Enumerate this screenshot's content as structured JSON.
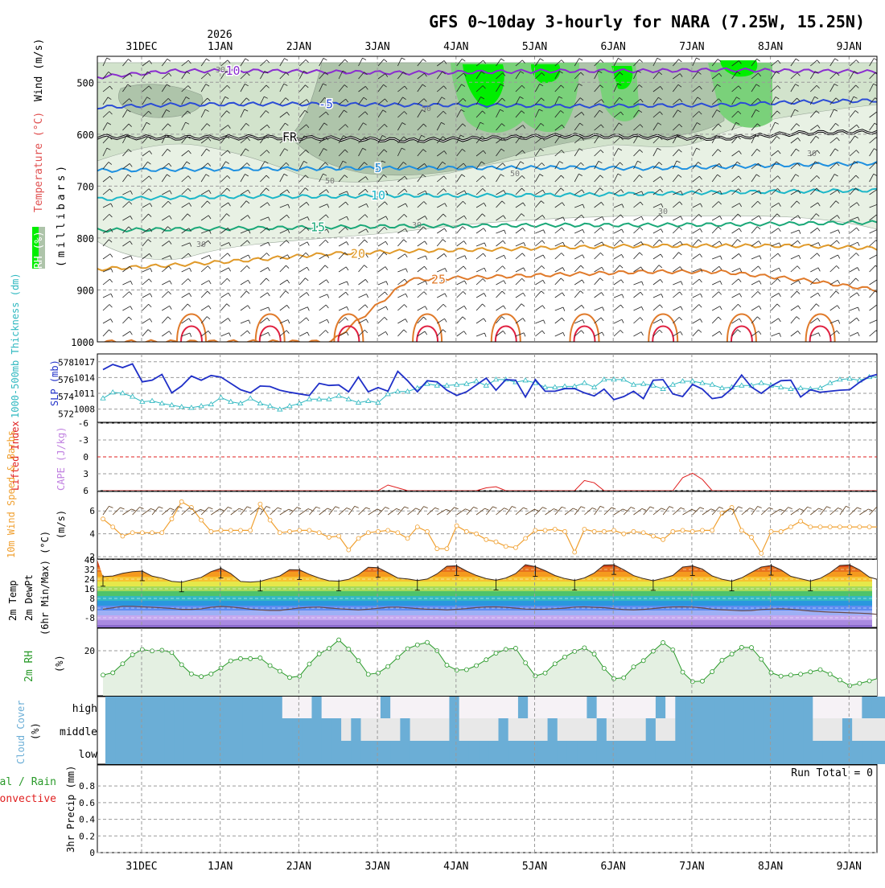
{
  "page": {
    "title": "GFS 0~10day 3-hourly for NARA (7.25W, 15.25N)",
    "year_label": "2026",
    "dates": [
      "31DEC",
      "1JAN",
      "2JAN",
      "3JAN",
      "4JAN",
      "5JAN",
      "6JAN",
      "7JAN",
      "8JAN",
      "9JAN"
    ]
  },
  "colors": {
    "rh_light": "#e8f1e4",
    "rh_mid": "#d2e3cc",
    "rh_dark": "#aec4aa",
    "rh_green": "#7ad17a",
    "rh_bright": "#00ee00",
    "temp_neg10": "#8a2ecf",
    "temp_neg5": "#2b4cd6",
    "temp_fr": "#000000",
    "temp_5": "#1e90e0",
    "temp_10": "#1cb7c8",
    "temp_15": "#1aa878",
    "temp_20": "#e09a2a",
    "temp_25": "#e07a2a",
    "temp_hot": "#e02040",
    "slp": "#1f2fc8",
    "thickness": "#2fb8c0",
    "wind10": "#f0a030",
    "rh2m": "#2a9a2a",
    "cloud": "#6baed6",
    "precip_total": "#2a9a2a",
    "precip_conv": "#e02020"
  },
  "chart_data": [
    {
      "type": "line",
      "panel": "upper-air",
      "ylabel_parts": [
        "RH (%)",
        "Temperature (°C)",
        "Wind (m/s)"
      ],
      "ylabel2": "(millibars)",
      "ylim": [
        1000,
        450
      ],
      "yticks": [
        500,
        600,
        700,
        800,
        900,
        1000
      ],
      "x_days": [
        0,
        10
      ],
      "rh_contour_labels": [
        "30",
        "50"
      ],
      "isotherms": [
        {
          "label": "-10",
          "values": [
            490,
            478,
            478,
            480,
            482,
            480,
            478,
            478,
            476,
            478,
            480
          ]
        },
        {
          "label": "-5",
          "values": [
            548,
            543,
            542,
            542,
            544,
            544,
            546,
            545,
            544,
            538,
            535
          ]
        },
        {
          "label": "FR",
          "values": [
            605,
            607,
            606,
            608,
            612,
            608,
            603,
            605,
            608,
            598,
            595
          ]
        },
        {
          "label": "5",
          "values": [
            670,
            668,
            667,
            666,
            665,
            665,
            664,
            666,
            663,
            659,
            656
          ]
        },
        {
          "label": "10",
          "values": [
            725,
            722,
            720,
            720,
            718,
            718,
            717,
            715,
            712,
            710,
            708
          ]
        },
        {
          "label": "15",
          "values": [
            785,
            783,
            781,
            779,
            777,
            776,
            775,
            775,
            774,
            772,
            770
          ]
        },
        {
          "label": "20",
          "values": [
            860,
            852,
            842,
            830,
            825,
            822,
            818,
            815,
            815,
            815,
            820
          ]
        },
        {
          "label": "25",
          "values": [
            1000,
            1000,
            1000,
            1000,
            880,
            875,
            870,
            865,
            865,
            880,
            900
          ]
        }
      ]
    },
    {
      "type": "line",
      "panel": "thickness-slp",
      "ylabel": "1000-500mb Thickness (dm)",
      "ylabel2": "SLP (mb)",
      "left_ticks": [
        "572",
        "574",
        "576",
        "578"
      ],
      "right_ticks": [
        "1008",
        "1011",
        "1014",
        "1017"
      ],
      "series": [
        {
          "name": "SLP (mb)",
          "values": [
            1015.5,
            1016.5,
            1015.9,
            1016.6,
            1013.2,
            1013.5,
            1014.6,
            1011.1,
            1012.4,
            1014.3,
            1013.5,
            1014.4,
            1014.1,
            1012.9,
            1011.7,
            1011.1,
            1012.4,
            1012.3,
            1011.6,
            1011.2,
            1010.9,
            1010.6,
            1012.9,
            1012.5,
            1012.6,
            1011.3,
            1014.1,
            1011.3,
            1012.1,
            1011.4,
            1015.2,
            1013.4,
            1011.3,
            1013.4,
            1013.2,
            1011.6,
            1010.6,
            1011.3,
            1012.6,
            1013.9,
            1011.6,
            1013.6,
            1013.5,
            1010.3,
            1013.6,
            1011.4,
            1011.4,
            1011.9,
            1011.9,
            1011.1,
            1010.5,
            1011.8,
            1009.8,
            1010.4,
            1011.4,
            1010.0,
            1013.5,
            1013.6,
            1010.9,
            1010.4,
            1012.7,
            1011.8,
            1010.0,
            1010.3,
            1011.9,
            1014.5,
            1012.2,
            1011.0,
            1012.4,
            1013.4,
            1013.5,
            1010.3,
            1011.7,
            1011.2,
            1011.4,
            1011.6,
            1011.7,
            1013.1,
            1014.2,
            1014.7,
            1013.1
          ]
        },
        {
          "name": "Thickness (dm)",
          "values": [
            573.8,
            574.5,
            574.4,
            574.0,
            573.4,
            573.5,
            573.2,
            573.0,
            572.8,
            572.7,
            572.9,
            573.1,
            573.9,
            573.4,
            573.2,
            573.8,
            573.2,
            572.9,
            572.5,
            572.9,
            573.2,
            573.7,
            573.7,
            573.7,
            574.1,
            573.7,
            573.3,
            573.5,
            573.3,
            574.3,
            574.6,
            574.6,
            575.0,
            575.5,
            575.3,
            575.3,
            575.4,
            575.5,
            575.8,
            575.3,
            576.0,
            576.0,
            575.7,
            575.9,
            575.6,
            575.1,
            575.1,
            575.2,
            575.2,
            575.6,
            575.1,
            576.0,
            576.0,
            576.0,
            575.4,
            575.5,
            575.3,
            574.9,
            575.4,
            575.8,
            575.8,
            575.6,
            575.4,
            575.0,
            575.1,
            575.3,
            575.3,
            575.6,
            575.3,
            575.1,
            574.9,
            575.0,
            574.9,
            575.0,
            575.6,
            576.0,
            576.1,
            575.9,
            576.3,
            576.3,
            576.1
          ]
        }
      ]
    },
    {
      "type": "line",
      "panel": "cape-li",
      "ylabel": "Lifted Index",
      "ylabel2": "CAPE (J/kg)",
      "yticks": [
        "-6",
        "-3",
        "0",
        "3",
        "6"
      ],
      "ylim": [
        6,
        -6
      ],
      "series": [
        {
          "name": "Lifted Index",
          "values": [
            6,
            6,
            6,
            6,
            6,
            6,
            6,
            6,
            6,
            6,
            6,
            6,
            6,
            6,
            6,
            6,
            6,
            6,
            6,
            6,
            6,
            6,
            6,
            6,
            6,
            6,
            6,
            6,
            6,
            5.0,
            5.5,
            6,
            6,
            6,
            6,
            6,
            6,
            6,
            6,
            5.5,
            5.3,
            6,
            6,
            6,
            6,
            6,
            6,
            6,
            6,
            4.2,
            4.6,
            6,
            6,
            6,
            6,
            6,
            6,
            6,
            6,
            3.7,
            2.9,
            4.0,
            6,
            6,
            6,
            6,
            6,
            6,
            6,
            6,
            6,
            6,
            6,
            6,
            6,
            6,
            6,
            6,
            6,
            6,
            6
          ]
        }
      ]
    },
    {
      "type": "line",
      "panel": "wind10m",
      "ylabel": "10m Wind Speed & Barbs",
      "ylabel2": "(m/s)",
      "yticks": [
        "2",
        "4",
        "6"
      ],
      "ylim": [
        1.8,
        7.7
      ],
      "series": [
        {
          "name": "10m Wind Speed",
          "values": [
            5.3,
            4.6,
            3.8,
            4.1,
            4.1,
            4.1,
            4.1,
            5.3,
            6.8,
            6.3,
            5.2,
            4.2,
            4.3,
            4.3,
            4.3,
            4.3,
            6.6,
            5.2,
            4.1,
            4.2,
            4.3,
            4.3,
            4.1,
            3.7,
            3.8,
            2.6,
            3.6,
            4.1,
            4.2,
            4.3,
            4.1,
            3.6,
            4.6,
            4.2,
            2.7,
            2.7,
            4.7,
            4.2,
            4.0,
            3.5,
            3.3,
            2.9,
            2.8,
            3.6,
            4.3,
            4.3,
            4.4,
            4.2,
            2.4,
            4.4,
            4.2,
            4.2,
            4.3,
            4.0,
            4.2,
            4.1,
            3.8,
            3.5,
            4.2,
            4.3,
            4.2,
            4.3,
            4.3,
            5.8,
            6.3,
            4.3,
            3.7,
            2.3,
            4.2,
            4.2,
            4.6,
            5.1,
            4.6,
            4.6,
            4.6,
            4.6,
            4.6,
            4.6,
            4.6,
            4.6,
            4.6
          ]
        }
      ]
    },
    {
      "type": "area",
      "panel": "temp2m",
      "ylabel": "2m Temp",
      "ylabel2": "2m DewPt",
      "ylabel3": "(6hr Min/Max) (°C)",
      "yticks": [
        "40",
        "32",
        "24",
        "16",
        "8",
        "0",
        "-8"
      ],
      "ylim": [
        -16,
        40
      ],
      "series": [
        {
          "name": "2m Temp",
          "values": [
            26.1,
            26.6,
            28.8,
            30.2,
            30.7,
            26.5,
            24.8,
            22.2,
            21.5,
            23.5,
            25.5,
            30.2,
            32.9,
            28.6,
            22.1,
            21.6,
            22.2,
            24.5,
            26.7,
            31.8,
            31.7,
            27.9,
            24.9,
            22.7,
            22.3,
            23.8,
            27.7,
            33.8,
            33.5,
            29.3,
            24.9,
            24.2,
            22.8,
            24.1,
            28.3,
            34.7,
            35.1,
            30.7,
            27.1,
            24.4,
            23.1,
            24.9,
            28.6,
            36.0,
            34.3,
            31.0,
            27.0,
            24.5,
            22.9,
            25.0,
            29.1,
            35.7,
            35.9,
            31.8,
            26.9,
            24.5,
            22.7,
            24.7,
            27.1,
            34.0,
            35.0,
            32.3,
            26.7,
            23.9,
            22.3,
            25.1,
            29.6,
            34.0,
            35.3,
            31.7,
            26.3,
            24.3,
            22.4,
            24.7,
            29.3,
            35.3,
            35.8,
            31.7,
            25.7,
            23.3,
            22.0
          ]
        },
        {
          "name": "2m DewPt",
          "values": [
            -0.9,
            0.2,
            1.5,
            1.5,
            1.0,
            0.7,
            0.2,
            -0.3,
            -1.1,
            -1.1,
            -0.7,
            0.7,
            1.3,
            0.9,
            0.1,
            -0.9,
            -1.5,
            -1.9,
            -1.9,
            -0.9,
            0.1,
            0.6,
            0.8,
            0.1,
            -0.5,
            -1.0,
            -1.5,
            -0.9,
            -0.2,
            0.7,
            0.8,
            0.2,
            -0.4,
            -0.9,
            -1.0,
            -1.5,
            -1.0,
            -0.4,
            0.4,
            0.9,
            1.0,
            0.6,
            -0.1,
            -0.8,
            -1.0,
            -0.9,
            -0.5,
            -0.1,
            0.8,
            1.0,
            0.6,
            0.3,
            -0.5,
            -1.2,
            -1.5,
            -1.1,
            -0.4,
            0.4,
            0.9,
            1.0,
            0.8,
            0.1,
            -0.9,
            -1.4,
            -1.8,
            -2.2,
            -2.0,
            -1.2,
            -0.8,
            -0.6,
            -1.0,
            -1.7,
            -2.4,
            -2.9,
            -3.3,
            -3.6,
            -3.9,
            -4.2,
            -4.6,
            -5.4,
            -10.0
          ]
        }
      ]
    },
    {
      "type": "line",
      "panel": "rh2m",
      "ylabel": "2m RH",
      "ylabel2": "(%)",
      "yticks": [
        "20"
      ],
      "ylim": [
        0,
        30
      ],
      "series": [
        {
          "name": "2m RH",
          "values": [
            9.2,
            10.2,
            14.2,
            18.2,
            20.5,
            19.9,
            20.2,
            19.2,
            13.8,
            9.7,
            8.5,
            9.7,
            12.3,
            15.5,
            16.5,
            16.5,
            16.8,
            13.4,
            10.9,
            8.1,
            8.7,
            14.1,
            18.6,
            21.0,
            24.8,
            20.7,
            15.6,
            9.5,
            10.1,
            13.0,
            17.0,
            20.9,
            22.6,
            23.7,
            20.0,
            13.6,
            11.4,
            11.6,
            13.4,
            16.0,
            18.9,
            20.6,
            21.1,
            14.6,
            8.8,
            10.1,
            14.2,
            17.2,
            19.7,
            21.3,
            18.5,
            12.2,
            7.6,
            8.0,
            12.8,
            15.6,
            19.8,
            23.6,
            20.4,
            10.5,
            6.3,
            6.5,
            10.7,
            15.8,
            18.5,
            21.5,
            21.4,
            16.2,
            10.2,
            8.7,
            9.2,
            9.6,
            10.6,
            11.6,
            9.6,
            7.0,
            4.5,
            5.5,
            6.6,
            7.9,
            5.6
          ]
        }
      ]
    },
    {
      "type": "table",
      "panel": "cloud",
      "ylabel": "Cloud Cover",
      "ylabel2": "(%)",
      "levels": [
        "high",
        "middle",
        "low"
      ]
    },
    {
      "type": "bar",
      "panel": "precip",
      "ylabel": "3hr Precip (mm)",
      "legend_total": "Total / Rain",
      "legend_conv": "Convective",
      "run_total": "Run Total = 0",
      "yticks": [
        "0.8",
        "0.6",
        "0.4",
        "0.2",
        "0"
      ],
      "ylim": [
        0,
        1
      ],
      "series": [
        {
          "name": "Total / Rain",
          "values": []
        },
        {
          "name": "Convective",
          "values": []
        }
      ]
    }
  ]
}
